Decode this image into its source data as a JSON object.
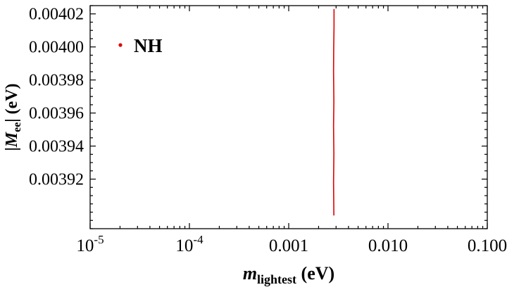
{
  "chart_data": {
    "type": "line",
    "title": "",
    "xlabel": {
      "prefix": "m",
      "sub": "lightest",
      "suffix": " (eV)"
    },
    "ylabel": {
      "pre": "|",
      "main": "M",
      "sub": "ee",
      "post": "| (eV)"
    },
    "xscale": "log",
    "xlim": [
      1e-05,
      0.1
    ],
    "ylim": [
      0.00389,
      0.004025
    ],
    "grid": false,
    "x_ticks": [
      {
        "v": 1e-05,
        "base": "10",
        "sup": "-5"
      },
      {
        "v": 0.0001,
        "base": "10",
        "sup": "-4"
      },
      {
        "v": 0.001,
        "label": "0.001"
      },
      {
        "v": 0.01,
        "label": "0.010"
      },
      {
        "v": 0.1,
        "label": "0.100"
      }
    ],
    "y_ticks": [
      {
        "v": 0.00392,
        "label": "0.00392"
      },
      {
        "v": 0.00394,
        "label": "0.00394"
      },
      {
        "v": 0.00396,
        "label": "0.00396"
      },
      {
        "v": 0.00398,
        "label": "0.00398"
      },
      {
        "v": 0.004,
        "label": "0.00400"
      },
      {
        "v": 0.00402,
        "label": "0.00402"
      }
    ],
    "legend": {
      "label": "NH",
      "color": "#e00000",
      "position": "top-left"
    },
    "series": [
      {
        "name": "NH",
        "color": "#e00000",
        "points": [
          [
            0.00285,
            0.003898
          ],
          [
            0.00283,
            0.003918
          ],
          [
            0.00285,
            0.003935
          ],
          [
            0.00283,
            0.003952
          ],
          [
            0.00285,
            0.003967
          ],
          [
            0.00283,
            0.003985
          ],
          [
            0.00284,
            0.004
          ],
          [
            0.00286,
            0.004012
          ],
          [
            0.00286,
            0.004023
          ]
        ]
      }
    ],
    "frame_color": "#000000"
  }
}
